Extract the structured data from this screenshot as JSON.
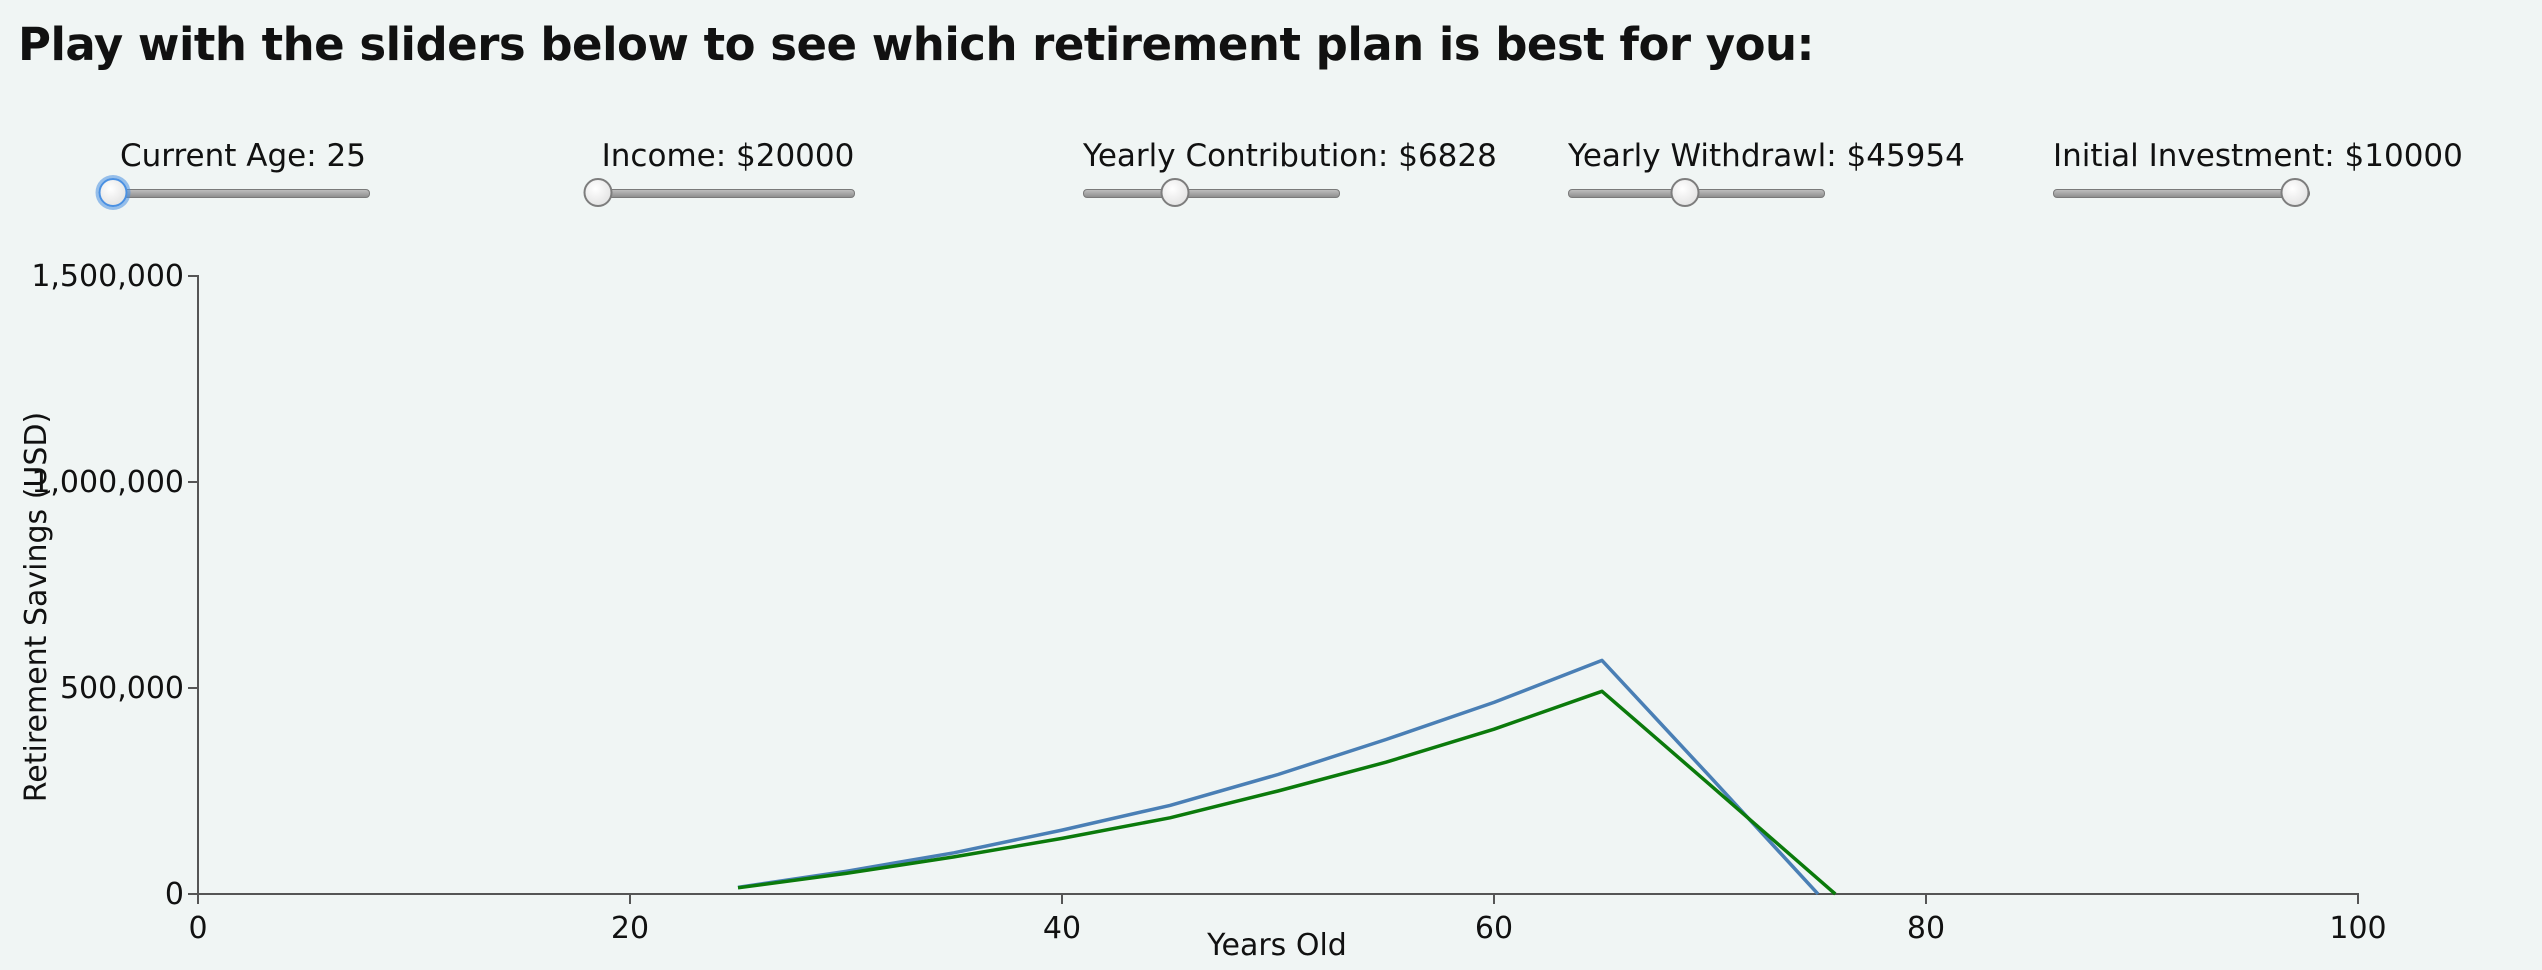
{
  "page": {
    "title": "Play with the sliders below to see which retirement plan is best for you:"
  },
  "sliders": [
    {
      "label": "Current Age: 25",
      "fraction": 0.0,
      "focused": true
    },
    {
      "label": "Income: $20000",
      "fraction": 0.0,
      "focused": false
    },
    {
      "label": "Yearly Contribution: $6828",
      "fraction": 0.36,
      "focused": false
    },
    {
      "label": "Yearly Withdrawl: $45954",
      "fraction": 0.46,
      "focused": false
    },
    {
      "label": "Initial Investment: $10000",
      "fraction": 0.95,
      "focused": false
    }
  ],
  "colors": {
    "series_blue": "#4a7fb5",
    "series_green": "#0b7a0b",
    "axis": "#555555"
  },
  "chart_data": {
    "type": "line",
    "title": "",
    "xlabel": "Years Old",
    "ylabel": "Retirement Savings (USD)",
    "xlim": [
      0,
      100
    ],
    "ylim": [
      0,
      1500000
    ],
    "x_ticks": [
      0,
      20,
      40,
      60,
      80,
      100
    ],
    "x_tick_labels": [
      "0",
      "20",
      "40",
      "60",
      "80",
      "100"
    ],
    "y_ticks": [
      0,
      500000,
      1000000,
      1500000
    ],
    "y_tick_labels": [
      "0",
      "500,000",
      "1,000,000",
      "1,500,000"
    ],
    "grid": false,
    "series": [
      {
        "color": "#4a7fb5",
        "x": [
          25,
          30,
          35,
          40,
          45,
          50,
          55,
          60,
          65,
          70,
          75
        ],
        "y": [
          16000,
          55000,
          100000,
          155000,
          215000,
          290000,
          375000,
          465000,
          567000,
          285000,
          0
        ]
      },
      {
        "color": "#0b7a0b",
        "x": [
          25,
          30,
          35,
          40,
          45,
          50,
          55,
          60,
          65,
          70,
          75.8
        ],
        "y": [
          15000,
          50000,
          90000,
          135000,
          185000,
          250000,
          320000,
          400000,
          492000,
          265000,
          0
        ]
      }
    ]
  }
}
